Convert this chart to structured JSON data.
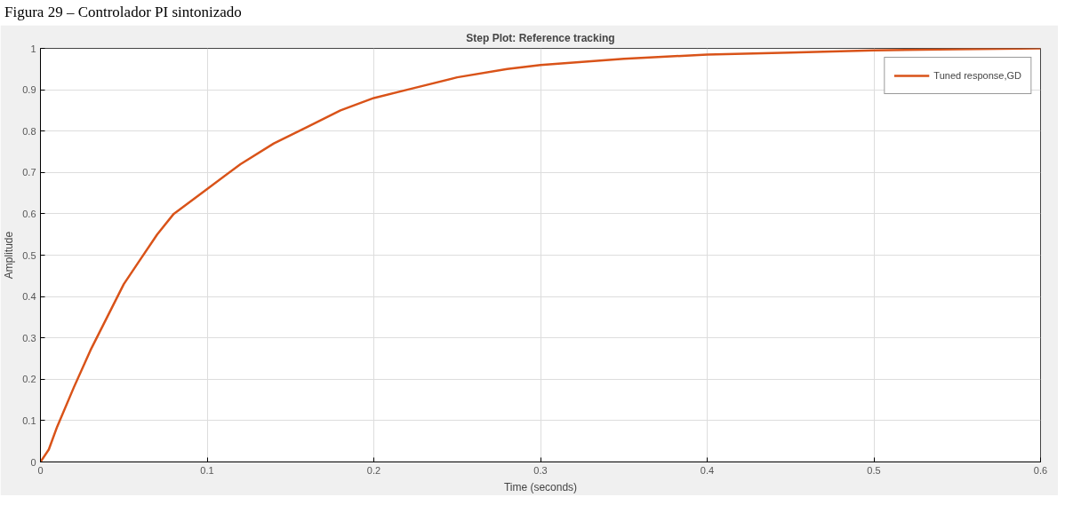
{
  "chart_data": {
    "type": "line",
    "title": "Step Plot: Reference tracking",
    "xlabel": "Time (seconds)",
    "ylabel": "Amplitude",
    "annotations": [
      "Figura 29 – Controlador PI sintonizado"
    ],
    "x": [
      0,
      0.005,
      0.01,
      0.02,
      0.03,
      0.04,
      0.05,
      0.06,
      0.07,
      0.08,
      0.09,
      0.1,
      0.12,
      0.14,
      0.16,
      0.18,
      0.2,
      0.22,
      0.25,
      0.28,
      0.3,
      0.35,
      0.4,
      0.45,
      0.5,
      0.55,
      0.6
    ],
    "series": [
      {
        "name": "Tuned response,GD",
        "color": "#d95319",
        "values": [
          0,
          0.03,
          0.085,
          0.18,
          0.27,
          0.35,
          0.43,
          0.49,
          0.55,
          0.6,
          0.63,
          0.66,
          0.72,
          0.77,
          0.81,
          0.85,
          0.88,
          0.9,
          0.93,
          0.95,
          0.96,
          0.975,
          0.985,
          0.99,
          0.995,
          0.998,
          1
        ]
      }
    ],
    "xlim": [
      0,
      0.6
    ],
    "ylim": [
      0,
      1
    ],
    "xticks": [
      0,
      0.1,
      0.2,
      0.3,
      0.4,
      0.5,
      0.6
    ],
    "yticks": [
      0,
      0.1,
      0.2,
      0.3,
      0.4,
      0.5,
      0.6,
      0.7,
      0.8,
      0.9,
      1
    ],
    "grid": true,
    "legend": "top right",
    "line_style": "solid",
    "marker": "none"
  }
}
